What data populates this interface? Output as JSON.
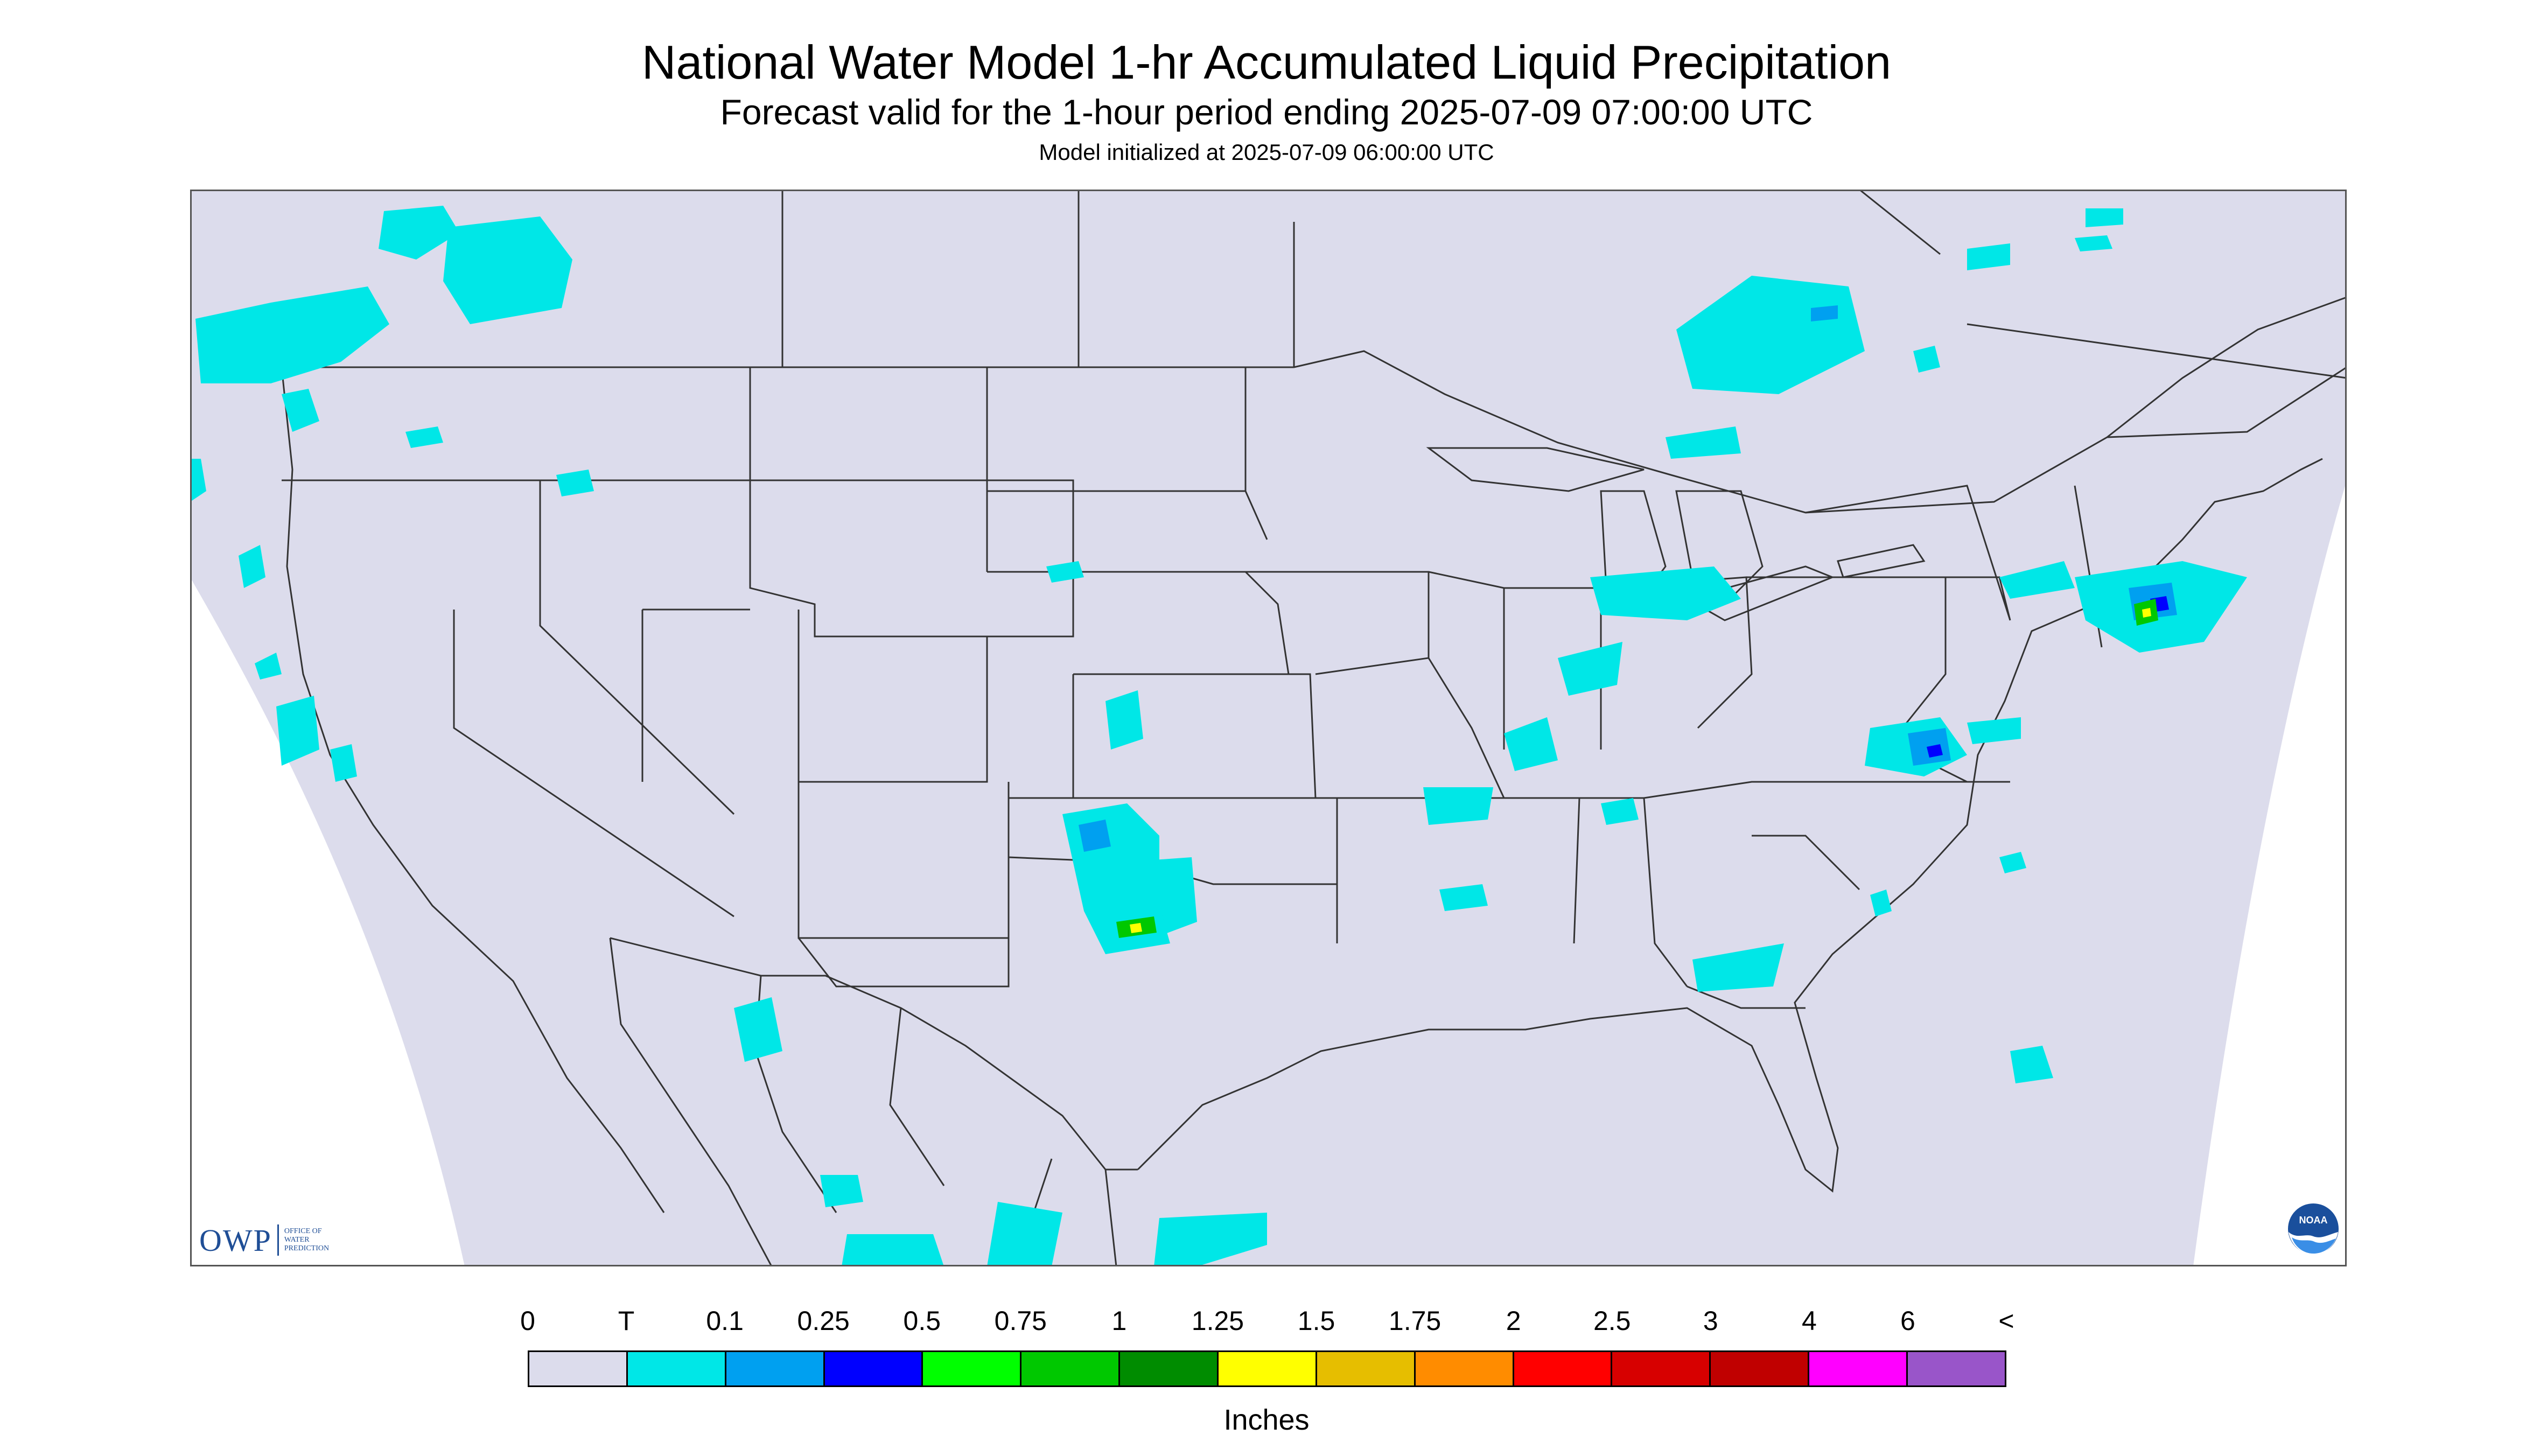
{
  "header": {
    "title": "National Water Model 1-hr Accumulated Liquid Precipitation",
    "subtitle": "Forecast valid for the 1-hour period ending 2025-07-09 07:00:00 UTC",
    "init": "Model initialized at 2025-07-09 06:00:00 UTC"
  },
  "logos": {
    "owp_mark": "OWP",
    "owp_text": [
      "OFFICE OF",
      "WATER",
      "PREDICTION"
    ],
    "noaa": "NOAA"
  },
  "legend": {
    "labels": [
      "0",
      "T",
      "0.1",
      "0.25",
      "0.5",
      "0.75",
      "1",
      "1.25",
      "1.5",
      "1.75",
      "2",
      "2.5",
      "3",
      "4",
      "6",
      "<"
    ],
    "colors": [
      "#dcdcec",
      "#00e7e7",
      "#00a0f0",
      "#0000ff",
      "#00ff00",
      "#00c800",
      "#008c00",
      "#ffff00",
      "#e6be00",
      "#ff8c00",
      "#ff0000",
      "#d70000",
      "#c00000",
      "#ff00ff",
      "#9955c9"
    ],
    "units": "Inches"
  },
  "map": {
    "background": "#dcdcec",
    "precip_colors": {
      "trace": "#00e7e7",
      "light": "#00a0f0",
      "moderate": "#0000ff",
      "green": "#00c800",
      "yellow": "#ffff00"
    }
  }
}
